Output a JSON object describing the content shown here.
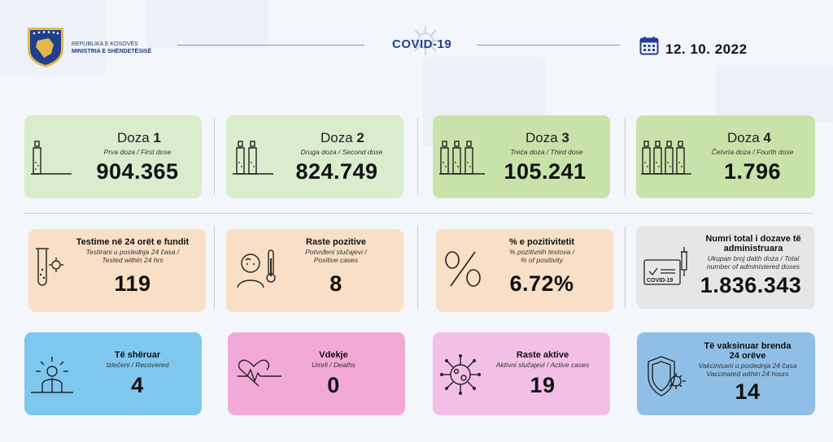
{
  "header": {
    "ministry_line1": "REPUBLIKA E KOSOVËS",
    "ministry_line2": "MINISTRIA E SHËNDETËSISË",
    "center_title": "COVID-19",
    "date": "12. 10. 2022",
    "icons": [
      "kosovo-emblem-icon",
      "coronavirus-icon",
      "calendar-icon"
    ]
  },
  "doses": [
    {
      "label": "Doza",
      "number": "1",
      "subtitle": "Prva doza / First dose",
      "value": "904.365",
      "vials": 1
    },
    {
      "label": "Doza",
      "number": "2",
      "subtitle": "Druga doza / Second dose",
      "value": "824.749",
      "vials": 2
    },
    {
      "label": "Doza",
      "number": "3",
      "subtitle": "Treća doza / Third dose",
      "value": "105.241",
      "vials": 3
    },
    {
      "label": "Doza",
      "number": "4",
      "subtitle": "Četvrta doza / Fourth dose",
      "value": "1.796",
      "vials": 4
    }
  ],
  "stats": [
    {
      "title": "Testime në 24 orët e fundit",
      "subtitle1": "Testirani u poslednja 24 časa /",
      "subtitle2": "Tested within 24 hrs",
      "value": "119",
      "icon": "test-tube-icon"
    },
    {
      "title": "Raste pozitive",
      "subtitle1": "Potvrđeni slučajevi /",
      "subtitle2": "Positive cases",
      "value": "8",
      "icon": "fever-person-icon"
    },
    {
      "title": "% e pozitivitetit",
      "subtitle1": "% pozitivnih testova /",
      "subtitle2": "% of positivity",
      "value": "6.72%",
      "icon": "percent-icon"
    },
    {
      "title": "Numri total i dozave të administruara",
      "title1": "Numri total i dozave të",
      "title2": "administruara",
      "subtitle1": "Ukupan broj datih doza / Total",
      "subtitle2": "number of administered doses",
      "value": "1.836.343",
      "icon": "vaccine-certificate-icon",
      "icon_text": "COVID-19"
    }
  ],
  "outcomes": [
    {
      "title": "Të shëruar",
      "subtitle": "Izlečeni / Recovered",
      "value": "4",
      "icon": "recovered-person-icon"
    },
    {
      "title": "Vdekje",
      "subtitle": "Umrli / Deaths",
      "value": "0",
      "icon": "heartbeat-icon"
    },
    {
      "title": "Raste aktive",
      "subtitle": "Aktivni slučajevi / Active cases",
      "value": "19",
      "icon": "virus-icon"
    },
    {
      "title1": "Të vaksinuar brenda",
      "title2": "24 orëve",
      "subtitle1": "Vakcinisani u poslednja 24 časa",
      "subtitle2": "Vaccinated within 24 hours",
      "value": "14",
      "icon": "shield-virus-icon"
    }
  ],
  "colors": {
    "dose_card_1_2": "#d9eccc",
    "dose_card_3_4": "#c8e3a9",
    "stat_card_orange": "#f8dfc5",
    "stat_card_grey": "#e6e6e6",
    "recovered_blue": "#7ec8ef",
    "deaths_pink": "#f2a9d8",
    "active_pink": "#f4bfe6",
    "vaccinated_blue": "#8fbfe6",
    "accent_navy": "#234092"
  }
}
